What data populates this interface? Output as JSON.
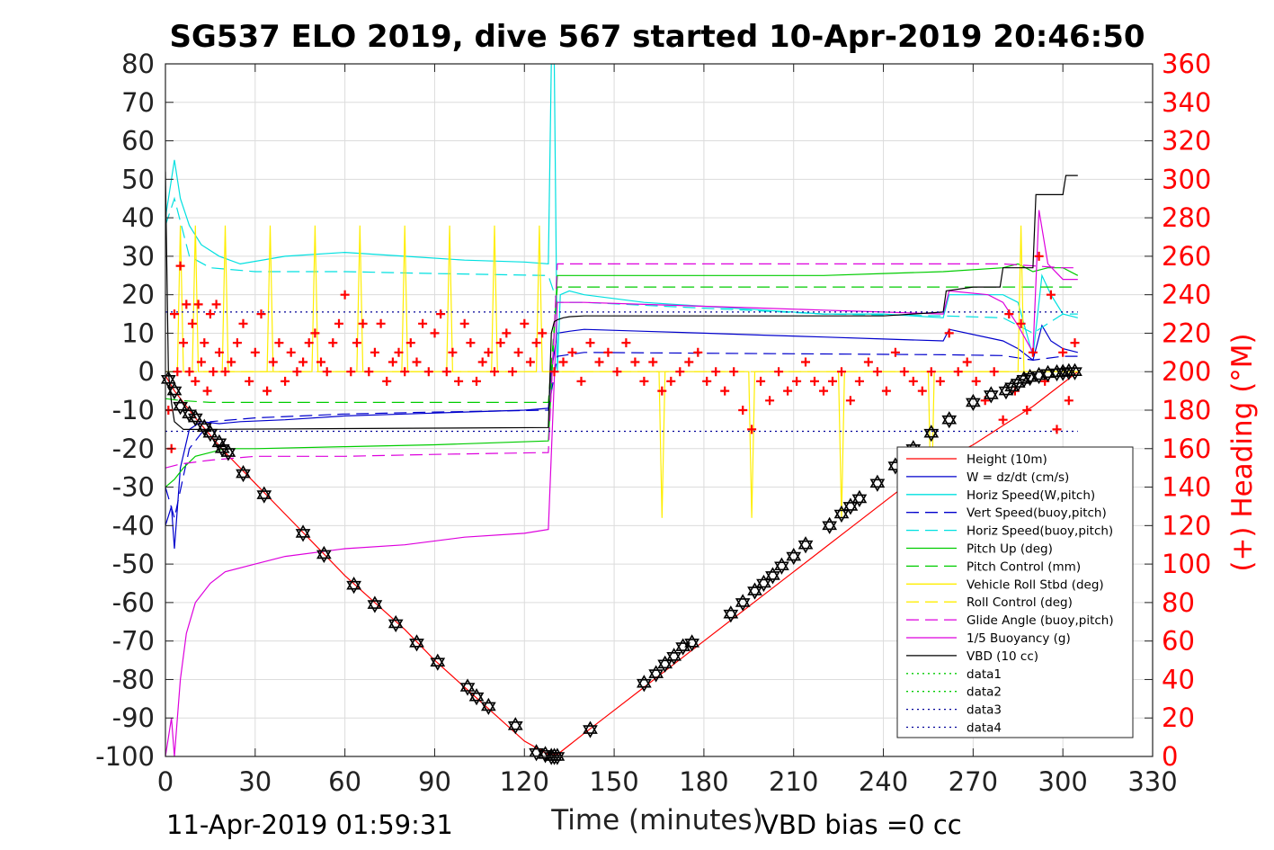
{
  "chart_data": {
    "type": "line",
    "title": "SG537 ELO 2019, dive 567 started 10-Apr-2019 20:46:50",
    "xlabel": "Time (minutes)",
    "ylabel_right": "(+) Heading (°M)",
    "footer_left": "11-Apr-2019 01:59:31",
    "footer_right": "VBD bias =0 cc",
    "xlim": [
      0,
      330
    ],
    "ylim": [
      -100,
      80
    ],
    "ylim_right": [
      0,
      360
    ],
    "x_ticks": [
      0,
      30,
      60,
      90,
      120,
      150,
      180,
      210,
      240,
      270,
      300,
      330
    ],
    "y_ticks": [
      80,
      70,
      60,
      50,
      40,
      30,
      20,
      10,
      0,
      -10,
      -20,
      -30,
      -40,
      -50,
      -60,
      -70,
      -80,
      -90,
      -100
    ],
    "y_ticks_right": [
      360,
      340,
      320,
      300,
      280,
      260,
      240,
      220,
      200,
      180,
      160,
      140,
      120,
      100,
      80,
      60,
      40,
      20,
      0
    ],
    "grid": true,
    "legend_position": "bottom-right",
    "colors": {
      "heading": "#ff0000",
      "right_axis": "#ff0000"
    },
    "series": [
      {
        "name": "Height (10m)",
        "color": "#ff0000",
        "dash": "solid",
        "width": 1.2,
        "x": [
          0,
          3,
          10,
          20,
          30,
          40,
          50,
          60,
          70,
          80,
          90,
          100,
          110,
          120,
          128,
          131,
          140,
          150,
          160,
          170,
          180,
          190,
          200,
          210,
          220,
          230,
          240,
          250,
          260,
          270,
          280,
          290,
          300,
          305
        ],
        "y": [
          -1,
          -5,
          -12,
          -21,
          -29,
          -37,
          -45,
          -53,
          -60,
          -67,
          -75,
          -82,
          -89,
          -96,
          -99.5,
          -99.5,
          -94,
          -88,
          -82,
          -76,
          -70,
          -64,
          -58,
          -52,
          -46,
          -40,
          -34,
          -28,
          -23,
          -19,
          -14,
          -9,
          -3,
          0
        ]
      },
      {
        "name": "W = dz/dt (cm/s)",
        "color": "#0000cc",
        "dash": "solid",
        "width": 1.2,
        "x": [
          0,
          2,
          3,
          5,
          8,
          12,
          18,
          25,
          40,
          60,
          80,
          100,
          120,
          128,
          129,
          131,
          135,
          140,
          160,
          180,
          200,
          220,
          240,
          260,
          262,
          280,
          285,
          290,
          293,
          296,
          300,
          305
        ],
        "y": [
          -40,
          -35,
          -46,
          -25,
          -15,
          -13,
          -13.5,
          -13,
          -12.5,
          -11.5,
          -11,
          -10.5,
          -10,
          -9.5,
          0,
          10,
          10.5,
          11,
          10.5,
          10,
          9.5,
          9,
          8.5,
          8,
          11,
          8,
          6,
          3,
          12,
          8,
          6,
          5
        ]
      },
      {
        "name": "Horiz Speed(W,pitch)",
        "color": "#00e0e0",
        "dash": "solid",
        "width": 1.2,
        "x": [
          0,
          2,
          3,
          5,
          8,
          12,
          18,
          25,
          40,
          60,
          80,
          100,
          120,
          128,
          129,
          130,
          131,
          132,
          135,
          140,
          160,
          180,
          200,
          220,
          240,
          260,
          262,
          280,
          285,
          290,
          293,
          296,
          300,
          305
        ],
        "y": [
          40,
          50,
          55,
          45,
          38,
          33,
          30,
          28,
          30,
          31,
          30,
          29,
          28.5,
          28,
          80,
          80,
          0,
          20,
          21,
          20,
          18,
          17,
          16,
          15,
          15,
          14,
          20,
          20,
          18,
          4,
          25,
          20,
          15,
          14
        ]
      },
      {
        "name": "Vert Speed(buoy,pitch)",
        "color": "#0000cc",
        "dash": "dash",
        "width": 1.2,
        "x": [
          0,
          3,
          8,
          15,
          30,
          60,
          90,
          128,
          131,
          140,
          180,
          220,
          260,
          280,
          290,
          300,
          305
        ],
        "y": [
          -30,
          -38,
          -20,
          -13,
          -12,
          -11,
          -10.5,
          -10,
          4,
          5,
          4.8,
          4.6,
          4.4,
          4.2,
          3,
          4,
          4
        ]
      },
      {
        "name": "Horiz Speed(buoy,pitch)",
        "color": "#00e0e0",
        "dash": "dash",
        "width": 1.2,
        "x": [
          0,
          3,
          8,
          15,
          30,
          60,
          90,
          128,
          131,
          140,
          180,
          220,
          260,
          280,
          290,
          300,
          305
        ],
        "y": [
          38,
          45,
          30,
          27,
          26,
          26,
          25.5,
          25,
          18,
          18,
          16.5,
          15,
          14.5,
          14,
          10,
          15,
          15
        ]
      },
      {
        "name": "Pitch Up (deg)",
        "color": "#00cc00",
        "dash": "solid",
        "width": 1.2,
        "x": [
          0,
          3,
          6,
          10,
          15,
          20,
          30,
          60,
          90,
          128,
          131,
          140,
          160,
          180,
          200,
          220,
          240,
          260,
          280,
          285,
          290,
          295,
          300,
          305
        ],
        "y": [
          -30,
          -28,
          -25,
          -22,
          -21,
          -20,
          -20,
          -19.5,
          -19,
          -18,
          25,
          25,
          25,
          25,
          25,
          25,
          25.5,
          26,
          27,
          28,
          26,
          27,
          27,
          25
        ]
      },
      {
        "name": "Pitch Control (mm)",
        "color": "#00cc00",
        "dash": "dash",
        "width": 1.2,
        "x": [
          0,
          5,
          15,
          30,
          60,
          90,
          128,
          131,
          180,
          240,
          280,
          300,
          305
        ],
        "y": [
          -7,
          -7.5,
          -8,
          -8,
          -8,
          -8,
          -8,
          22,
          22,
          22,
          22,
          22,
          22
        ]
      },
      {
        "name": "Vehicle Roll Stbd (deg)",
        "color": "#ffee00",
        "dash": "solid",
        "width": 1.2,
        "x": [
          0,
          4,
          5,
          6,
          9,
          10,
          11,
          19,
          20,
          21,
          34,
          35,
          36,
          49,
          50,
          51,
          64,
          65,
          66,
          79,
          80,
          81,
          94,
          95,
          96,
          109,
          110,
          111,
          124,
          125,
          126,
          128,
          132,
          150,
          160,
          165,
          166,
          167,
          180,
          195,
          196,
          197,
          210,
          225,
          226,
          227,
          240,
          255,
          256,
          257,
          270,
          285,
          286,
          287,
          300,
          305
        ],
        "y": [
          0,
          0,
          38,
          0,
          0,
          38,
          0,
          0,
          38,
          0,
          0,
          38,
          0,
          0,
          38,
          0,
          0,
          38,
          0,
          0,
          38,
          0,
          0,
          38,
          0,
          0,
          38,
          0,
          0,
          38,
          0,
          0,
          0,
          0,
          0,
          0,
          -38,
          0,
          0,
          0,
          -38,
          0,
          0,
          0,
          -38,
          0,
          0,
          0,
          -38,
          0,
          0,
          0,
          38,
          0,
          0,
          0
        ]
      },
      {
        "name": "Roll Control (deg)",
        "color": "#ffee00",
        "dash": "dash",
        "width": 1.2,
        "x": [
          0,
          305
        ],
        "y": [
          0,
          0
        ]
      },
      {
        "name": "Glide Angle (buoy,pitch)",
        "color": "#dd00dd",
        "dash": "dash",
        "width": 1.2,
        "x": [
          0,
          5,
          15,
          30,
          60,
          90,
          128,
          131,
          180,
          240,
          280,
          300,
          305
        ],
        "y": [
          -25,
          -24,
          -23,
          -22,
          -22,
          -21.5,
          -21,
          28,
          28,
          28,
          28,
          27,
          27
        ]
      },
      {
        "name": "1/5 Buoyancy (g)",
        "color": "#dd00dd",
        "dash": "solid",
        "width": 1.2,
        "x": [
          0,
          2,
          3,
          5,
          7,
          10,
          15,
          20,
          30,
          40,
          60,
          80,
          100,
          120,
          128,
          131,
          140,
          160,
          180,
          200,
          220,
          240,
          260,
          262,
          275,
          280,
          285,
          290,
          292,
          295,
          300,
          305
        ],
        "y": [
          -100,
          -90,
          -100,
          -80,
          -68,
          -60,
          -55,
          -52,
          -50,
          -48,
          -46,
          -45,
          -43,
          -42,
          -41,
          18,
          18,
          17.5,
          17,
          16.5,
          16,
          15.5,
          15,
          21,
          20,
          18,
          12,
          5,
          42,
          28,
          24,
          24
        ]
      },
      {
        "name": "VBD (10 cc)",
        "color": "#000000",
        "dash": "solid",
        "width": 1.2,
        "x": [
          0,
          1,
          2,
          3,
          6,
          10,
          128,
          129,
          130,
          131,
          133,
          135,
          140,
          160,
          200,
          240,
          250,
          260,
          261,
          270,
          279,
          280,
          290,
          291,
          295,
          300,
          301,
          305
        ],
        "y": [
          52,
          0,
          -8,
          -13,
          -15,
          -15,
          -14.5,
          10,
          13,
          13.5,
          14,
          14.3,
          14.5,
          14.5,
          14.5,
          14.5,
          15,
          15.5,
          21,
          22,
          22,
          27,
          27,
          46,
          46,
          46,
          51,
          51
        ]
      },
      {
        "name": "data1",
        "color": "#00cc00",
        "dash": "dot",
        "width": 1.2,
        "x": [],
        "y": []
      },
      {
        "name": "data2",
        "color": "#00cc00",
        "dash": "dot",
        "width": 1.2,
        "x": [],
        "y": []
      },
      {
        "name": "data3",
        "color": "#000099",
        "dash": "dot",
        "width": 1.2,
        "x": [
          0,
          305
        ],
        "y": [
          15.5,
          15.5
        ]
      },
      {
        "name": "data4",
        "color": "#000099",
        "dash": "dot",
        "width": 1.2,
        "x": [
          0,
          305
        ],
        "y": [
          -15.5,
          -15.5
        ]
      }
    ],
    "heading_points": {
      "color": "#ff0000",
      "axis": "right",
      "x": [
        1,
        2,
        3,
        4,
        5,
        6,
        7,
        8,
        9,
        10,
        11,
        12,
        13,
        14,
        15,
        16,
        17,
        18,
        20,
        22,
        24,
        26,
        28,
        30,
        32,
        34,
        36,
        38,
        40,
        42,
        44,
        46,
        48,
        50,
        52,
        54,
        56,
        58,
        60,
        62,
        64,
        66,
        68,
        70,
        72,
        74,
        76,
        78,
        80,
        82,
        84,
        86,
        88,
        90,
        92,
        94,
        96,
        98,
        100,
        102,
        104,
        106,
        108,
        110,
        112,
        114,
        116,
        118,
        120,
        122,
        124,
        126,
        130,
        133,
        136,
        139,
        142,
        145,
        148,
        151,
        154,
        157,
        160,
        163,
        166,
        169,
        172,
        175,
        178,
        181,
        184,
        187,
        190,
        193,
        196,
        199,
        202,
        205,
        208,
        211,
        214,
        217,
        220,
        223,
        226,
        229,
        232,
        235,
        238,
        241,
        244,
        247,
        250,
        253,
        256,
        259,
        262,
        265,
        268,
        271,
        274,
        277,
        280,
        282,
        284,
        286,
        288,
        290,
        292,
        294,
        296,
        298,
        300,
        302,
        304
      ],
      "y": [
        180,
        160,
        230,
        200,
        255,
        215,
        235,
        200,
        225,
        195,
        235,
        205,
        215,
        190,
        230,
        200,
        235,
        210,
        200,
        205,
        215,
        225,
        195,
        210,
        230,
        190,
        205,
        215,
        195,
        210,
        200,
        205,
        215,
        220,
        205,
        200,
        215,
        225,
        240,
        200,
        215,
        225,
        200,
        210,
        225,
        195,
        205,
        210,
        200,
        215,
        205,
        225,
        200,
        220,
        230,
        200,
        210,
        195,
        225,
        215,
        195,
        205,
        210,
        200,
        215,
        220,
        200,
        210,
        225,
        205,
        215,
        220,
        200,
        205,
        210,
        195,
        215,
        205,
        210,
        200,
        215,
        205,
        195,
        205,
        190,
        195,
        200,
        205,
        210,
        195,
        200,
        190,
        200,
        180,
        170,
        195,
        185,
        200,
        190,
        195,
        205,
        195,
        190,
        195,
        200,
        185,
        195,
        205,
        200,
        190,
        210,
        200,
        195,
        190,
        200,
        195,
        220,
        200,
        205,
        195,
        185,
        200,
        175,
        230,
        190,
        225,
        180,
        210,
        260,
        195,
        240,
        170,
        210,
        185,
        215
      ]
    },
    "marker_points": {
      "color": "#000000",
      "x": [
        1,
        3,
        5,
        8,
        10,
        13,
        15,
        18,
        19,
        21,
        26,
        33,
        46,
        53,
        63,
        70,
        77,
        84,
        91,
        101,
        104,
        108,
        117,
        124,
        127,
        129,
        130,
        131,
        142,
        160,
        164,
        167,
        170,
        173,
        176,
        189,
        193,
        197,
        200,
        203,
        206,
        210,
        214,
        222,
        226,
        229,
        232,
        238,
        244,
        250,
        256,
        262,
        270,
        276,
        281,
        283,
        285,
        287,
        289,
        292,
        295,
        298,
        300,
        302,
        304
      ],
      "y": [
        -2,
        -5,
        -9,
        -11,
        -12,
        -14.5,
        -16,
        -18.5,
        -20,
        -21,
        -26.5,
        -32,
        -42,
        -47.5,
        -55.5,
        -60.5,
        -65.5,
        -70.5,
        -75.5,
        -82,
        -84.5,
        -87,
        -92,
        -99,
        -99.5,
        -100,
        -100,
        -100,
        -93,
        -81,
        -78.5,
        -76,
        -74,
        -71.5,
        -70.5,
        -63,
        -60,
        -57,
        -55,
        -53,
        -50.5,
        -48,
        -45,
        -40,
        -37,
        -35,
        -33,
        -29,
        -24.5,
        -20,
        -16,
        -12.5,
        -8,
        -6,
        -5,
        -4,
        -3,
        -2,
        -1.5,
        -1,
        -0.5,
        -0.3,
        -0.2,
        0,
        0
      ]
    }
  }
}
